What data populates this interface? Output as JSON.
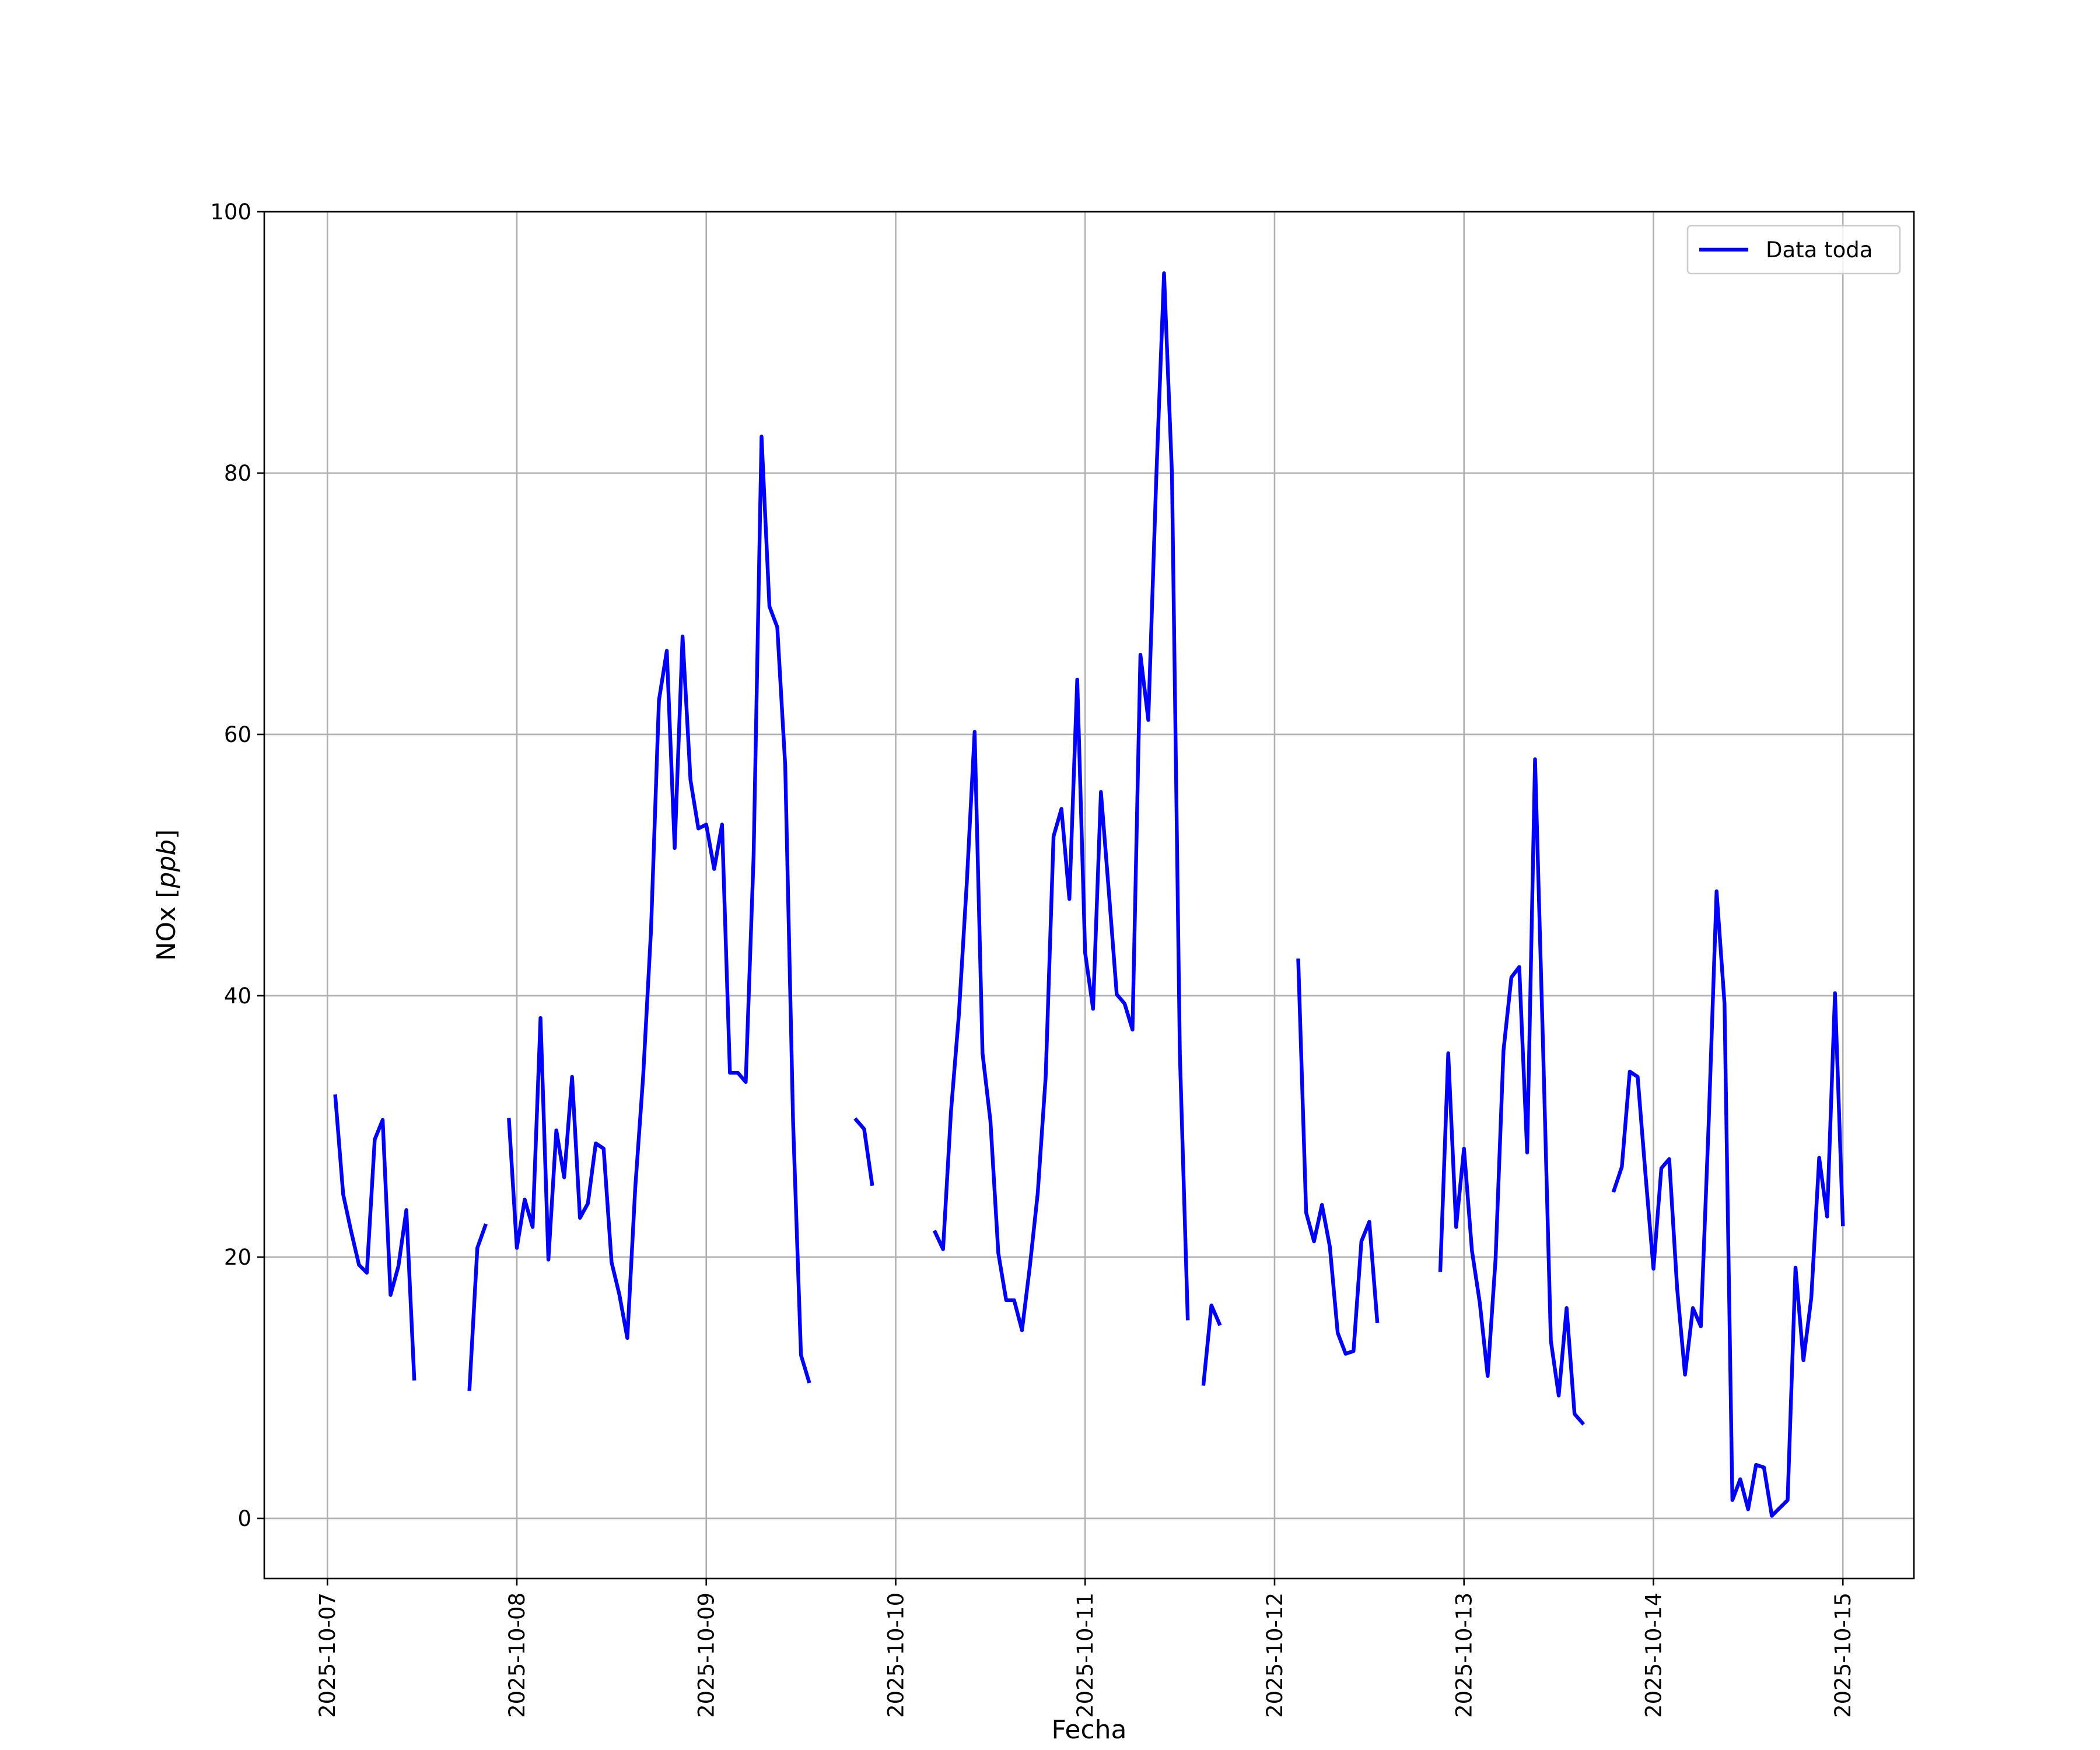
{
  "chart_data": {
    "type": "line",
    "title": "",
    "xlabel": "Fecha",
    "ylabel": "NOx [ppb]",
    "ylabel_text": "NOx [",
    "ylabel_italic": "ppb",
    "ylabel_close": "]",
    "xlim": [
      "2025-10-06 16:00",
      "2025-10-15 09:00"
    ],
    "ylim": [
      -4.6,
      100
    ],
    "x_ticks": [
      "2025-10-07",
      "2025-10-08",
      "2025-10-09",
      "2025-10-10",
      "2025-10-11",
      "2025-10-12",
      "2025-10-13",
      "2025-10-14",
      "2025-10-15"
    ],
    "y_ticks": [
      0,
      20,
      40,
      60,
      80,
      100
    ],
    "grid": true,
    "legend_position": "top-right",
    "series": [
      {
        "name": "Data toda",
        "color": "#0000ff",
        "segments": [
          [
            [
              "2025-10-07 01:00",
              32.3
            ],
            [
              "2025-10-07 02:00",
              24.8
            ],
            [
              "2025-10-07 03:00",
              22.0
            ],
            [
              "2025-10-07 04:00",
              19.4
            ],
            [
              "2025-10-07 05:00",
              18.8
            ],
            [
              "2025-10-07 06:00",
              29.0
            ],
            [
              "2025-10-07 07:00",
              30.5
            ],
            [
              "2025-10-07 08:00",
              17.1
            ],
            [
              "2025-10-07 09:00",
              19.3
            ],
            [
              "2025-10-07 10:00",
              23.6
            ],
            [
              "2025-10-07 11:00",
              10.7
            ]
          ],
          [
            [
              "2025-10-07 18:00",
              9.9
            ],
            [
              "2025-10-07 19:00",
              20.7
            ],
            [
              "2025-10-07 20:00",
              22.4
            ]
          ],
          [
            [
              "2025-10-07 23:00",
              30.5
            ],
            [
              "2025-10-08 00:00",
              20.7
            ],
            [
              "2025-10-08 01:00",
              24.4
            ],
            [
              "2025-10-08 02:00",
              22.3
            ],
            [
              "2025-10-08 03:00",
              38.3
            ],
            [
              "2025-10-08 04:00",
              19.8
            ],
            [
              "2025-10-08 05:00",
              29.7
            ],
            [
              "2025-10-08 06:00",
              26.1
            ],
            [
              "2025-10-08 07:00",
              33.8
            ],
            [
              "2025-10-08 08:00",
              23.0
            ],
            [
              "2025-10-08 09:00",
              24.1
            ],
            [
              "2025-10-08 10:00",
              28.7
            ],
            [
              "2025-10-08 11:00",
              28.3
            ],
            [
              "2025-10-08 12:00",
              19.6
            ],
            [
              "2025-10-08 13:00",
              17.1
            ],
            [
              "2025-10-08 14:00",
              13.8
            ],
            [
              "2025-10-08 15:00",
              25.3
            ],
            [
              "2025-10-08 16:00",
              33.8
            ],
            [
              "2025-10-08 17:00",
              45.0
            ],
            [
              "2025-10-08 18:00",
              62.6
            ],
            [
              "2025-10-08 19:00",
              66.4
            ],
            [
              "2025-10-08 20:00",
              51.3
            ],
            [
              "2025-10-08 21:00",
              67.5
            ],
            [
              "2025-10-08 22:00",
              56.5
            ],
            [
              "2025-10-08 23:00",
              52.8
            ],
            [
              "2025-10-09 00:00",
              53.1
            ],
            [
              "2025-10-09 01:00",
              49.7
            ],
            [
              "2025-10-09 02:00",
              53.1
            ],
            [
              "2025-10-09 03:00",
              34.1
            ],
            [
              "2025-10-09 04:00",
              34.1
            ],
            [
              "2025-10-09 05:00",
              33.4
            ],
            [
              "2025-10-09 06:00",
              50.7
            ],
            [
              "2025-10-09 07:00",
              82.8
            ],
            [
              "2025-10-09 08:00",
              69.8
            ],
            [
              "2025-10-09 09:00",
              68.2
            ],
            [
              "2025-10-09 10:00",
              57.6
            ],
            [
              "2025-10-09 11:00",
              30.3
            ],
            [
              "2025-10-09 12:00",
              12.5
            ],
            [
              "2025-10-09 13:00",
              10.5
            ]
          ],
          [
            [
              "2025-10-09 19:00",
              30.5
            ],
            [
              "2025-10-09 20:00",
              29.8
            ],
            [
              "2025-10-09 21:00",
              25.6
            ]
          ],
          [
            [
              "2025-10-10 05:00",
              21.9
            ],
            [
              "2025-10-10 06:00",
              20.6
            ],
            [
              "2025-10-10 07:00",
              31.1
            ],
            [
              "2025-10-10 08:00",
              38.5
            ],
            [
              "2025-10-10 09:00",
              48.6
            ],
            [
              "2025-10-10 10:00",
              60.2
            ],
            [
              "2025-10-10 11:00",
              35.6
            ],
            [
              "2025-10-10 12:00",
              30.4
            ],
            [
              "2025-10-10 13:00",
              20.3
            ],
            [
              "2025-10-10 14:00",
              16.7
            ],
            [
              "2025-10-10 15:00",
              16.7
            ],
            [
              "2025-10-10 16:00",
              14.4
            ],
            [
              "2025-10-10 17:00",
              19.3
            ],
            [
              "2025-10-10 18:00",
              24.9
            ],
            [
              "2025-10-10 19:00",
              33.8
            ],
            [
              "2025-10-10 20:00",
              52.2
            ],
            [
              "2025-10-10 21:00",
              54.3
            ],
            [
              "2025-10-10 22:00",
              47.4
            ],
            [
              "2025-10-10 23:00",
              64.2
            ],
            [
              "2025-10-11 00:00",
              43.3
            ],
            [
              "2025-10-11 01:00",
              39.0
            ],
            [
              "2025-10-11 02:00",
              55.6
            ],
            [
              "2025-10-11 03:00",
              48.0
            ],
            [
              "2025-10-11 04:00",
              40.1
            ],
            [
              "2025-10-11 05:00",
              39.4
            ],
            [
              "2025-10-11 06:00",
              37.4
            ],
            [
              "2025-10-11 07:00",
              66.1
            ],
            [
              "2025-10-11 08:00",
              61.1
            ],
            [
              "2025-10-11 09:00",
              79.4
            ],
            [
              "2025-10-11 10:00",
              95.3
            ],
            [
              "2025-10-11 11:00",
              79.9
            ],
            [
              "2025-10-11 12:00",
              35.6
            ],
            [
              "2025-10-11 13:00",
              15.3
            ]
          ],
          [
            [
              "2025-10-11 15:00",
              10.3
            ],
            [
              "2025-10-11 16:00",
              16.3
            ],
            [
              "2025-10-11 17:00",
              14.9
            ]
          ],
          [
            [
              "2025-10-12 03:00",
              42.7
            ],
            [
              "2025-10-12 04:00",
              23.4
            ],
            [
              "2025-10-12 05:00",
              21.2
            ],
            [
              "2025-10-12 06:00",
              24.0
            ],
            [
              "2025-10-12 07:00",
              20.8
            ],
            [
              "2025-10-12 08:00",
              14.2
            ],
            [
              "2025-10-12 09:00",
              12.6
            ],
            [
              "2025-10-12 10:00",
              12.8
            ],
            [
              "2025-10-12 11:00",
              21.2
            ],
            [
              "2025-10-12 12:00",
              22.7
            ],
            [
              "2025-10-12 13:00",
              15.1
            ]
          ],
          [
            [
              "2025-10-12 21:00",
              19.0
            ],
            [
              "2025-10-12 22:00",
              35.6
            ],
            [
              "2025-10-12 23:00",
              22.3
            ],
            [
              "2025-10-13 00:00",
              28.3
            ],
            [
              "2025-10-13 01:00",
              20.5
            ],
            [
              "2025-10-13 02:00",
              16.5
            ],
            [
              "2025-10-13 03:00",
              10.9
            ],
            [
              "2025-10-13 04:00",
              19.9
            ],
            [
              "2025-10-13 05:00",
              35.8
            ],
            [
              "2025-10-13 06:00",
              41.4
            ],
            [
              "2025-10-13 07:00",
              42.2
            ],
            [
              "2025-10-13 08:00",
              28.0
            ],
            [
              "2025-10-13 09:00",
              58.1
            ],
            [
              "2025-10-13 10:00",
              36.5
            ],
            [
              "2025-10-13 11:00",
              13.6
            ],
            [
              "2025-10-13 12:00",
              9.4
            ],
            [
              "2025-10-13 13:00",
              16.1
            ],
            [
              "2025-10-13 14:00",
              8.0
            ],
            [
              "2025-10-13 15:00",
              7.3
            ]
          ],
          [
            [
              "2025-10-13 19:00",
              25.1
            ],
            [
              "2025-10-13 20:00",
              26.9
            ],
            [
              "2025-10-13 21:00",
              34.2
            ],
            [
              "2025-10-13 22:00",
              33.8
            ],
            [
              "2025-10-13 23:00",
              26.3
            ],
            [
              "2025-10-14 00:00",
              19.1
            ],
            [
              "2025-10-14 01:00",
              26.8
            ],
            [
              "2025-10-14 02:00",
              27.5
            ],
            [
              "2025-10-14 03:00",
              17.6
            ],
            [
              "2025-10-14 04:00",
              11.0
            ],
            [
              "2025-10-14 05:00",
              16.1
            ],
            [
              "2025-10-14 06:00",
              14.7
            ],
            [
              "2025-10-14 07:00",
              30.3
            ],
            [
              "2025-10-14 08:00",
              48.0
            ],
            [
              "2025-10-14 09:00",
              39.4
            ],
            [
              "2025-10-14 10:00",
              1.4
            ],
            [
              "2025-10-14 11:00",
              3.0
            ],
            [
              "2025-10-14 12:00",
              0.7
            ],
            [
              "2025-10-14 13:00",
              4.1
            ],
            [
              "2025-10-14 14:00",
              3.9
            ],
            [
              "2025-10-14 15:00",
              0.2
            ],
            [
              "2025-10-14 16:00",
              0.8
            ],
            [
              "2025-10-14 17:00",
              1.4
            ],
            [
              "2025-10-14 18:00",
              19.2
            ],
            [
              "2025-10-14 19:00",
              12.1
            ],
            [
              "2025-10-14 20:00",
              16.9
            ],
            [
              "2025-10-14 21:00",
              27.6
            ],
            [
              "2025-10-14 22:00",
              23.1
            ],
            [
              "2025-10-14 23:00",
              40.2
            ],
            [
              "2025-10-15 00:00",
              22.5
            ]
          ]
        ]
      }
    ]
  }
}
